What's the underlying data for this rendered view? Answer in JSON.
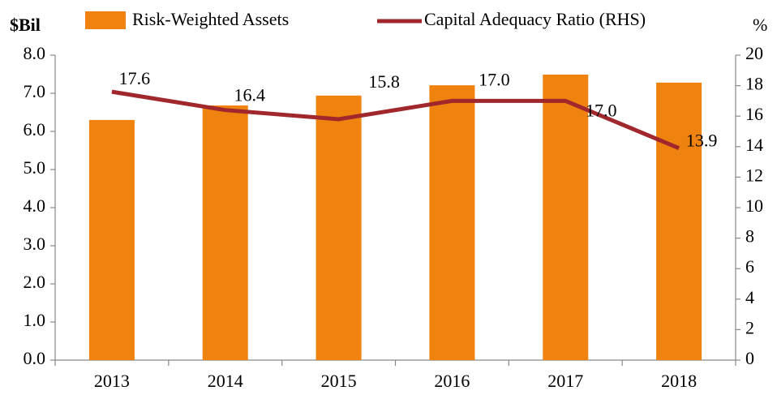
{
  "chart_data": {
    "type": "bar",
    "ylabel": "$Bil",
    "y2label": "%",
    "categories": [
      "2013",
      "2014",
      "2015",
      "2016",
      "2017",
      "2018"
    ],
    "series": [
      {
        "name": "Risk-Weighted Assets",
        "color": "#f0820f",
        "values": [
          6.3,
          6.68,
          6.94,
          7.21,
          7.49,
          7.28
        ]
      },
      {
        "name": "Capital Adequacy Ratio (RHS)",
        "color": "#a0282c",
        "type": "line",
        "axis": "y2",
        "values": [
          17.6,
          16.4,
          15.8,
          17.0,
          17.0,
          13.9
        ],
        "value_labels": [
          "17.6",
          "16.4",
          "15.8",
          "17.0",
          "17.0",
          "13.9"
        ]
      }
    ],
    "ylim": [
      0,
      8
    ],
    "yticks": [
      {
        "value": 0,
        "label": "0.0"
      },
      {
        "value": 1,
        "label": "1.0"
      },
      {
        "value": 2,
        "label": "2.0"
      },
      {
        "value": 3,
        "label": "3.0"
      },
      {
        "value": 4,
        "label": "4.0"
      },
      {
        "value": 5,
        "label": "5.0"
      },
      {
        "value": 6,
        "label": "6.0"
      },
      {
        "value": 7,
        "label": "7.0"
      },
      {
        "value": 8,
        "label": "8.0"
      }
    ],
    "y2lim": [
      0,
      20
    ],
    "y2ticks": [
      0,
      2,
      4,
      6,
      8,
      10,
      12,
      14,
      16,
      18,
      20
    ],
    "legend": "top"
  }
}
